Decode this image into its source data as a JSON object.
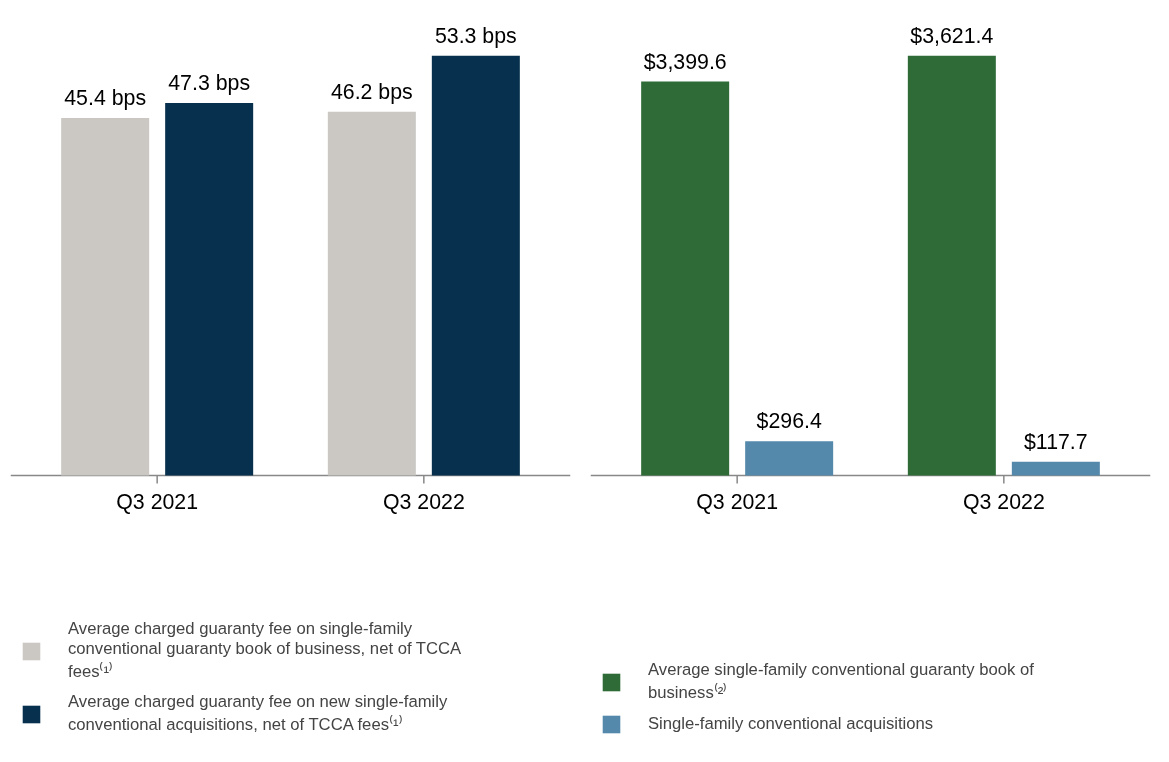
{
  "chart_data": [
    {
      "type": "bar",
      "categories": [
        "Q3 2021",
        "Q3 2022"
      ],
      "tick_labels": "x",
      "legend": "bottom",
      "series": [
        {
          "name": "Average charged guaranty fee on single-family conventional guaranty book of business, net of TCCA fees⁽¹⁾",
          "color": "#cbc8c3",
          "values": [
            45.4,
            46.2
          ],
          "value_labels": [
            "45.4 bps",
            "46.2 bps"
          ]
        },
        {
          "name": "Average charged guaranty fee on new single-family conventional acquisitions, net of TCCA fees⁽¹⁾",
          "color": "#06304d",
          "values": [
            47.3,
            53.3
          ],
          "value_labels": [
            "47.3 bps",
            "53.3 bps"
          ]
        }
      ]
    },
    {
      "type": "bar",
      "categories": [
        "Q3 2021",
        "Q3 2022"
      ],
      "tick_labels": "x",
      "legend": "bottom",
      "series": [
        {
          "name": "Average single-family conventional guaranty book of business⁽²⁾",
          "color": "#2e6b37",
          "values": [
            3399.6,
            3621.4
          ],
          "value_labels": [
            "$3,399.6",
            "$3,621.4"
          ]
        },
        {
          "name": "Single-family conventional acquisitions",
          "color": "#5589ab",
          "values": [
            296.4,
            117.7
          ],
          "value_labels": [
            "$296.4",
            "$117.7"
          ]
        }
      ]
    }
  ]
}
